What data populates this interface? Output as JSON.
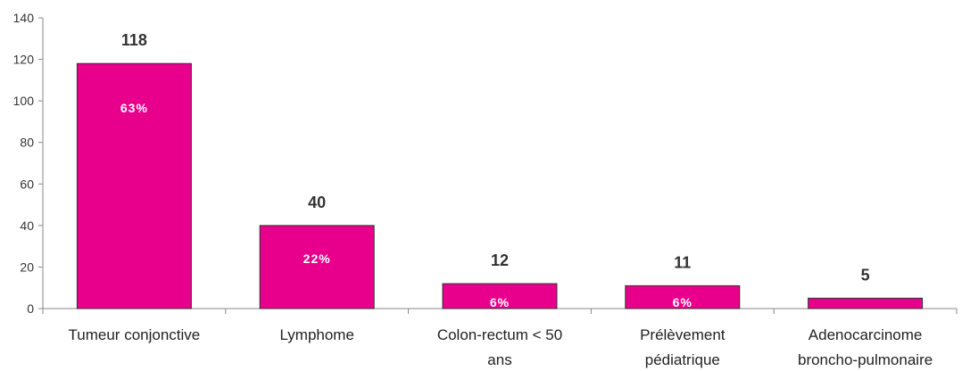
{
  "chart_data": {
    "type": "bar",
    "categories": [
      [
        "Tumeur conjonctive"
      ],
      [
        "Lymphome"
      ],
      [
        "Colon-rectum < 50",
        "ans"
      ],
      [
        "Prélèvement",
        "pédiatrique"
      ],
      [
        "Adenocarcinome",
        "broncho-pulmonaire"
      ]
    ],
    "values": [
      118,
      40,
      12,
      11,
      5
    ],
    "value_labels": [
      "118",
      "40",
      "12",
      "11",
      "5"
    ],
    "percent_labels": [
      "63%",
      "22%",
      "6%",
      "6%",
      ""
    ],
    "ylim": [
      0,
      140
    ],
    "yticks": [
      "0",
      "20",
      "40",
      "60",
      "80",
      "100",
      "120",
      "140"
    ],
    "ytick_values": [
      0,
      20,
      40,
      60,
      80,
      100,
      120,
      140
    ],
    "bar_color": "#e8008c",
    "grid": false,
    "title": "",
    "xlabel": "",
    "ylabel": ""
  }
}
